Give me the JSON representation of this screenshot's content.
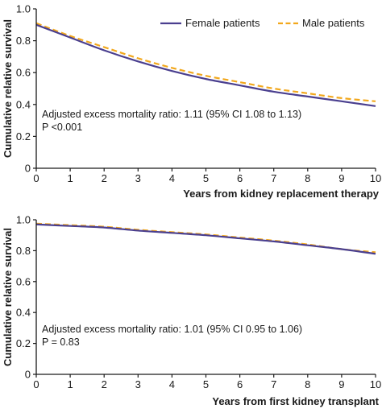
{
  "colors": {
    "female": "#4a3f8f",
    "male": "#f2a81d",
    "axis": "#1a1a1a"
  },
  "legend": {
    "female": "Female patients",
    "male": "Male patients"
  },
  "chart_data": [
    {
      "type": "line",
      "title": "",
      "xlabel": "Years from kidney replacement therapy",
      "ylabel": "Cumulative relative survival",
      "xlim": [
        0,
        10
      ],
      "ylim": [
        0,
        1.0
      ],
      "xticks": [
        "0",
        "1",
        "2",
        "3",
        "4",
        "5",
        "6",
        "7",
        "8",
        "9",
        "10"
      ],
      "yticks": [
        "0",
        "0.2",
        "0.4",
        "0.6",
        "0.8",
        "1.0"
      ],
      "x": [
        0,
        1,
        2,
        3,
        4,
        5,
        6,
        7,
        8,
        9,
        10
      ],
      "series": [
        {
          "name": "Female patients",
          "values": [
            0.9,
            0.82,
            0.74,
            0.67,
            0.61,
            0.56,
            0.52,
            0.48,
            0.45,
            0.42,
            0.39
          ]
        },
        {
          "name": "Male patients",
          "values": [
            0.91,
            0.83,
            0.76,
            0.69,
            0.63,
            0.58,
            0.54,
            0.5,
            0.47,
            0.44,
            0.42
          ]
        }
      ],
      "annotation": [
        "Adjusted excess mortality ratio: 1.11 (95% CI 1.08 to 1.13)",
        "P <0.001"
      ],
      "legend_position": "top"
    },
    {
      "type": "line",
      "title": "",
      "xlabel": "Years from first kidney transplant",
      "ylabel": "Cumulative relative survival",
      "xlim": [
        0,
        10
      ],
      "ylim": [
        0,
        1.0
      ],
      "xticks": [
        "0",
        "1",
        "2",
        "3",
        "4",
        "5",
        "6",
        "7",
        "8",
        "9",
        "10"
      ],
      "yticks": [
        "0",
        "0.2",
        "0.4",
        "0.6",
        "0.8",
        "1.0"
      ],
      "x": [
        0,
        1,
        2,
        3,
        4,
        5,
        6,
        7,
        8,
        9,
        10
      ],
      "series": [
        {
          "name": "Female patients",
          "values": [
            0.97,
            0.96,
            0.95,
            0.93,
            0.915,
            0.9,
            0.88,
            0.86,
            0.835,
            0.81,
            0.78
          ]
        },
        {
          "name": "Male patients",
          "values": [
            0.975,
            0.965,
            0.955,
            0.935,
            0.92,
            0.905,
            0.885,
            0.865,
            0.84,
            0.81,
            0.79
          ]
        }
      ],
      "annotation": [
        "Adjusted excess mortality ratio: 1.01 (95% CI 0.95 to 1.06)",
        "P = 0.83"
      ]
    }
  ]
}
